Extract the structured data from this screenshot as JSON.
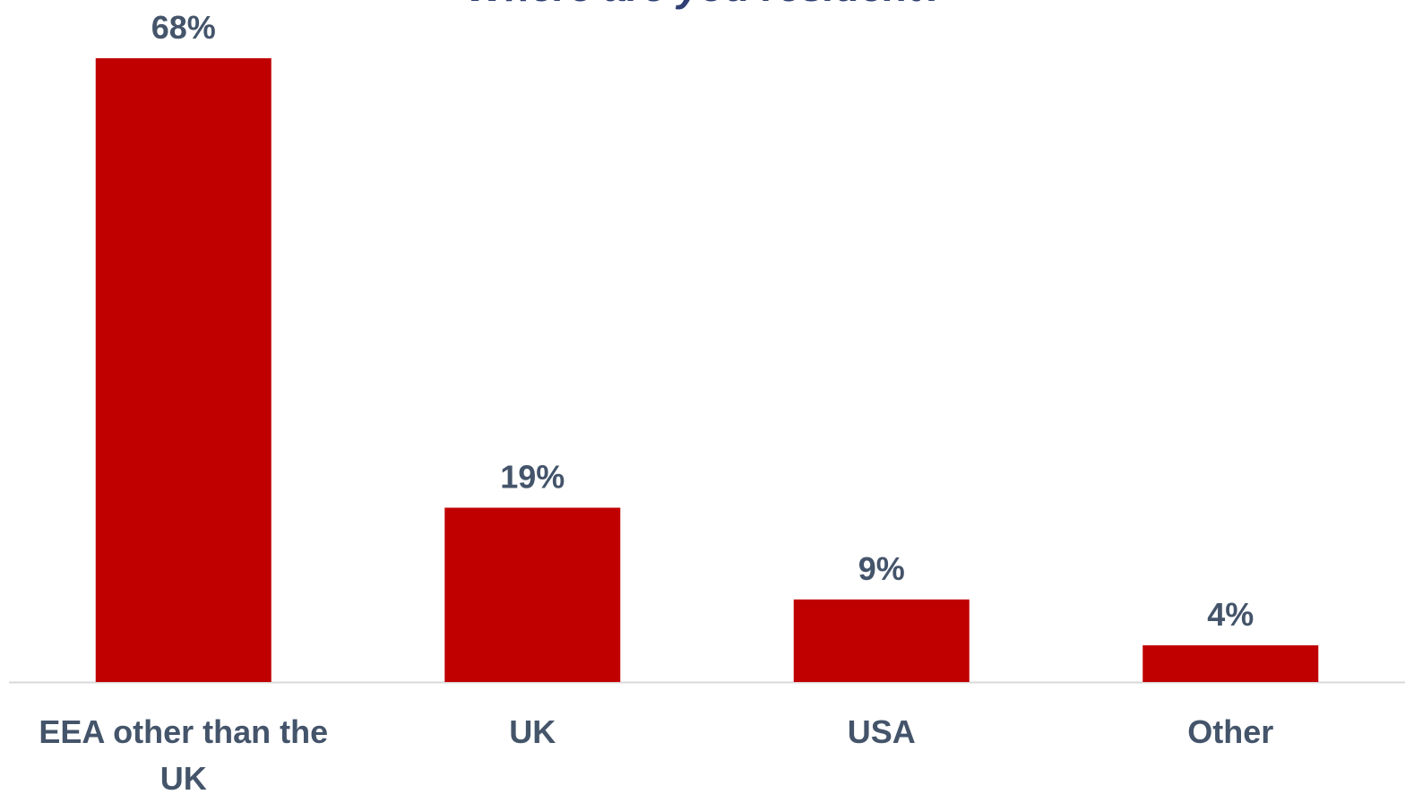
{
  "chart_data": {
    "type": "bar",
    "title": "Where are you resident?",
    "categories": [
      [
        "EEA other than the",
        "UK"
      ],
      [
        "UK"
      ],
      [
        "USA"
      ],
      [
        "Other"
      ]
    ],
    "values": [
      68,
      19,
      9,
      4
    ],
    "value_labels": [
      "68%",
      "19%",
      "9%",
      "4%"
    ],
    "xlabel": "",
    "ylabel": "",
    "ylim": [
      0,
      68
    ],
    "grid": false,
    "legend": "none"
  },
  "colors": {
    "bar": "#C00000",
    "text": "#44546A",
    "title": "#2F3F73",
    "axis": "#D9D9D9"
  }
}
